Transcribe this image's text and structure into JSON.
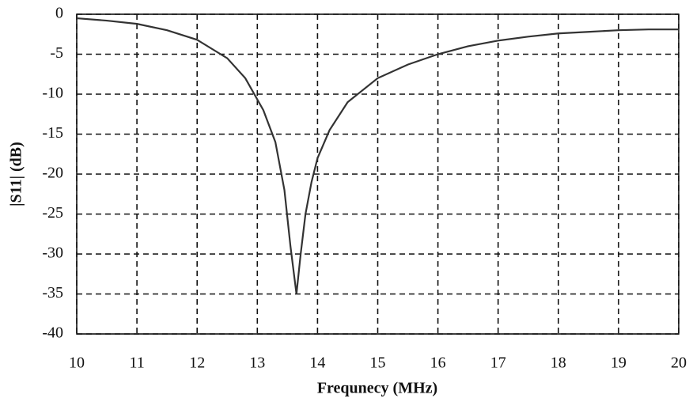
{
  "chart_data": {
    "type": "line",
    "xlabel": "Frequnecy (MHz)",
    "ylabel": "|S11| (dB)",
    "x": [
      10,
      10.5,
      11,
      11.5,
      12,
      12.5,
      12.8,
      13.1,
      13.3,
      13.45,
      13.55,
      13.65,
      13.72,
      13.8,
      13.9,
      14,
      14.2,
      14.5,
      15,
      15.5,
      16,
      16.5,
      17,
      17.5,
      18,
      18.5,
      19,
      19.5,
      20
    ],
    "series": [
      {
        "name": "S11",
        "color": "#333333",
        "values": [
          -0.5,
          -0.8,
          -1.2,
          -2,
          -3.2,
          -5.5,
          -8,
          -12,
          -16,
          -22,
          -29,
          -35,
          -30,
          -25,
          -21,
          -18,
          -14.5,
          -11,
          -8,
          -6.3,
          -5,
          -4,
          -3.3,
          -2.8,
          -2.4,
          -2.2,
          -2,
          -1.9,
          -1.9
        ]
      }
    ],
    "xlim": [
      10,
      20
    ],
    "xticks": [
      10,
      11,
      12,
      13,
      14,
      15,
      16,
      17,
      18,
      19,
      20
    ],
    "ylim": [
      -40,
      0
    ],
    "yticks": [
      0,
      -5,
      -10,
      -15,
      -20,
      -25,
      -30,
      -35,
      -40
    ],
    "grid": true
  }
}
